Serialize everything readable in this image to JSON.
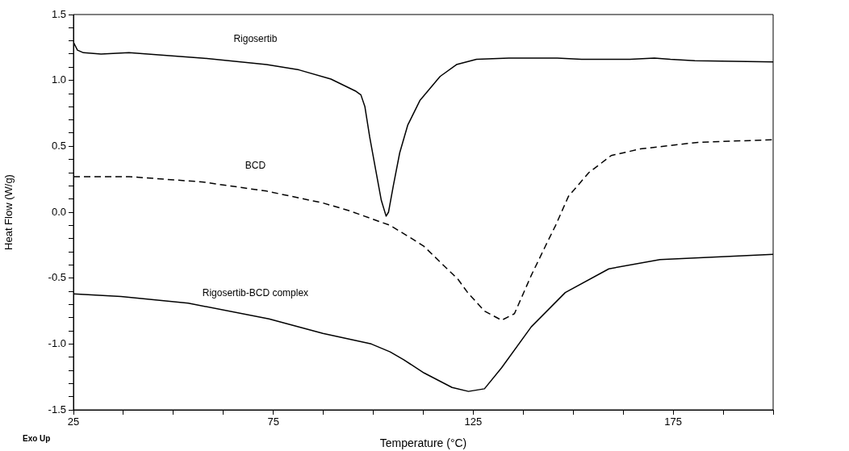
{
  "chart_data": {
    "type": "line",
    "xlabel": "Temperature (°C)",
    "ylabel": "Heat Flow (W/g)",
    "annotations": [
      "Exo Up"
    ],
    "xlim": [
      25,
      200
    ],
    "ylim": [
      -1.5,
      1.5
    ],
    "xticks": [
      25,
      {
        "value": 37.5,
        "label": null
      },
      {
        "value": 50,
        "label": null
      },
      {
        "value": 62.5,
        "label": null
      },
      75,
      {
        "value": 87.5,
        "label": null
      },
      {
        "value": 100,
        "label": null
      },
      {
        "value": 112.5,
        "label": null
      },
      125,
      {
        "value": 137.5,
        "label": null
      },
      {
        "value": 150,
        "label": null
      },
      {
        "value": 162.5,
        "label": null
      },
      175,
      {
        "value": 187.5,
        "label": null
      },
      {
        "value": 200,
        "label": null
      }
    ],
    "yticks": [
      {
        "value": -1.5,
        "label": "-1.5"
      },
      {
        "value": -1.4,
        "label": null
      },
      {
        "value": -1.3,
        "label": null
      },
      {
        "value": -1.2,
        "label": null
      },
      {
        "value": -1.1,
        "label": null
      },
      {
        "value": -1,
        "label": "-1.0"
      },
      {
        "value": -0.9,
        "label": null
      },
      {
        "value": -0.8,
        "label": null
      },
      {
        "value": -0.7,
        "label": null
      },
      {
        "value": -0.6,
        "label": null
      },
      {
        "value": -0.5,
        "label": "-0.5"
      },
      {
        "value": -0.4,
        "label": null
      },
      {
        "value": -0.3,
        "label": null
      },
      {
        "value": -0.2,
        "label": null
      },
      {
        "value": -0.1,
        "label": null
      },
      {
        "value": 0,
        "label": "0.0"
      },
      {
        "value": 0.1,
        "label": null
      },
      {
        "value": 0.2,
        "label": null
      },
      {
        "value": 0.3,
        "label": null
      },
      {
        "value": 0.4,
        "label": null
      },
      {
        "value": 0.5,
        "label": "0.5"
      },
      {
        "value": 0.6,
        "label": null
      },
      {
        "value": 0.7,
        "label": null
      },
      {
        "value": 0.8,
        "label": null
      },
      {
        "value": 0.9,
        "label": null
      },
      {
        "value": 1,
        "label": "1.0"
      },
      {
        "value": 1.1,
        "label": null
      },
      {
        "value": 1.2,
        "label": null
      },
      {
        "value": 1.3,
        "label": null
      },
      {
        "value": 1.4,
        "label": null
      },
      {
        "value": 1.5,
        "label": "1.5"
      }
    ],
    "grid": false,
    "legend": false,
    "marker": "none",
    "series": [
      {
        "name": "Rigosertib",
        "color": "#000000",
        "line_style": "solid",
        "x": [
          25,
          26,
          27.5,
          31.9,
          38.9,
          57.1,
          73.3,
          81.4,
          89.4,
          95.5,
          96.9,
          97.9,
          99.1,
          100.6,
          102,
          103.2,
          103.8,
          105,
          106.6,
          108.6,
          111.7,
          116.7,
          120.8,
          125.8,
          133.9,
          146,
          152.1,
          164.2,
          170.3,
          174.3,
          180.4,
          200
        ],
        "values": [
          1.29,
          1.23,
          1.21,
          1.2,
          1.21,
          1.17,
          1.12,
          1.08,
          1.01,
          0.92,
          0.89,
          0.8,
          0.57,
          0.32,
          0.09,
          -0.03,
          0,
          0.2,
          0.45,
          0.66,
          0.85,
          1.03,
          1.12,
          1.16,
          1.17,
          1.17,
          1.16,
          1.16,
          1.17,
          1.16,
          1.15,
          1.14
        ]
      },
      {
        "name": "BCD",
        "color": "#000000",
        "line_style": "dashed",
        "x": [
          25,
          38.9,
          57.1,
          73.3,
          87.4,
          94.1,
          104.2,
          109.6,
          112.7,
          121.2,
          123.6,
          127.8,
          132.1,
          135.3,
          139.5,
          143,
          145.6,
          148.8,
          153.9,
          159.5,
          166.8,
          181.2,
          200
        ],
        "values": [
          0.27,
          0.27,
          0.23,
          0.16,
          0.07,
          0.01,
          -0.1,
          -0.2,
          -0.26,
          -0.51,
          -0.61,
          -0.75,
          -0.82,
          -0.77,
          -0.48,
          -0.26,
          -0.1,
          0.12,
          0.3,
          0.43,
          0.48,
          0.53,
          0.55
        ]
      },
      {
        "name": "Rigosertib-BCD complex",
        "color": "#000000",
        "line_style": "solid",
        "x": [
          25,
          36.9,
          53.7,
          73.9,
          87.4,
          99.5,
          104.2,
          107.6,
          112.7,
          119.7,
          123.8,
          127.8,
          132.1,
          139.5,
          148,
          158.9,
          171.7,
          200
        ],
        "values": [
          -0.62,
          -0.64,
          -0.69,
          -0.81,
          -0.92,
          -1,
          -1.06,
          -1.12,
          -1.22,
          -1.33,
          -1.36,
          -1.34,
          -1.18,
          -0.87,
          -0.61,
          -0.43,
          -0.36,
          -0.32
        ]
      }
    ]
  }
}
